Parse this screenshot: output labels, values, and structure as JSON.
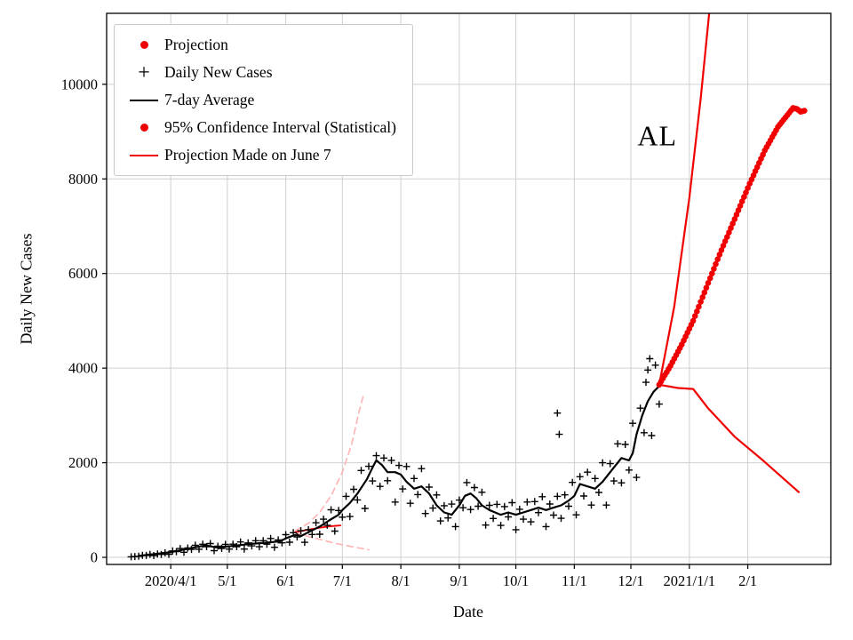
{
  "chart_data": {
    "type": "line",
    "title": "",
    "xlabel": "Date",
    "ylabel": "Daily New Cases",
    "annotation": {
      "text": "AL",
      "day": 349,
      "value": 8900
    },
    "x_unit": "days since 2020-01-01 (2020-2021 COVID-19 timeline)",
    "xlim_days": [
      57,
      441
    ],
    "ylim": [
      -150,
      11500
    ],
    "x_ticks": [
      {
        "day": 91,
        "label": "2020/4/1"
      },
      {
        "day": 121,
        "label": "5/1"
      },
      {
        "day": 152,
        "label": "6/1"
      },
      {
        "day": 182,
        "label": "7/1"
      },
      {
        "day": 213,
        "label": "8/1"
      },
      {
        "day": 244,
        "label": "9/1"
      },
      {
        "day": 274,
        "label": "10/1"
      },
      {
        "day": 305,
        "label": "11/1"
      },
      {
        "day": 335,
        "label": "12/1"
      },
      {
        "day": 366,
        "label": "2021/1/1"
      },
      {
        "day": 397,
        "label": "2/1"
      }
    ],
    "y_ticks": [
      0,
      2000,
      4000,
      6000,
      8000,
      10000
    ],
    "grid": true,
    "legend_position": "upper left",
    "colors": {
      "red": "#f00000",
      "pink": "#ffb3b3",
      "black": "#000000"
    },
    "legend": [
      {
        "label": "Projection",
        "marker": "dot",
        "color": "#f00000"
      },
      {
        "label": "Daily New Cases",
        "marker": "plus",
        "color": "#000000"
      },
      {
        "label": "7-day Average",
        "marker": "line",
        "color": "#000000"
      },
      {
        "label": "95% Confidence Interval (Statistical)",
        "marker": "dot",
        "color": "#f00000"
      },
      {
        "label": "Projection Made on June 7",
        "marker": "line",
        "color": "#f00000"
      }
    ],
    "series": [
      {
        "name": "june7_ci_upper",
        "style": "dashed",
        "color": "#ffb3b3",
        "width": 1.6,
        "points": [
          [
            157,
            560
          ],
          [
            164,
            720
          ],
          [
            170,
            950
          ],
          [
            176,
            1300
          ],
          [
            182,
            1800
          ],
          [
            187,
            2400
          ],
          [
            191,
            3100
          ],
          [
            193,
            3400
          ]
        ]
      },
      {
        "name": "june7_ci_lower",
        "style": "dashed",
        "color": "#ffb3b3",
        "width": 1.6,
        "points": [
          [
            157,
            520
          ],
          [
            164,
            440
          ],
          [
            171,
            370
          ],
          [
            178,
            300
          ],
          [
            185,
            240
          ],
          [
            192,
            190
          ],
          [
            196,
            160
          ]
        ]
      },
      {
        "name": "june7_projection",
        "style": "line",
        "color": "#f00000",
        "width": 1.8,
        "points": [
          [
            157,
            530
          ],
          [
            163,
            580
          ],
          [
            169,
            620
          ],
          [
            175,
            655
          ],
          [
            181,
            675
          ]
        ]
      },
      {
        "name": "daily_new_cases",
        "style": "scatter-plus",
        "color": "#000000",
        "width": 1.4,
        "points": [
          [
            70,
            12
          ],
          [
            72,
            18
          ],
          [
            74,
            23
          ],
          [
            76,
            43
          ],
          [
            78,
            40
          ],
          [
            80,
            64
          ],
          [
            82,
            38
          ],
          [
            84,
            72
          ],
          [
            86,
            62
          ],
          [
            88,
            96
          ],
          [
            90,
            65
          ],
          [
            92,
            136
          ],
          [
            94,
            120
          ],
          [
            96,
            186
          ],
          [
            98,
            107
          ],
          [
            100,
            198
          ],
          [
            102,
            167
          ],
          [
            104,
            256
          ],
          [
            106,
            172
          ],
          [
            108,
            276
          ],
          [
            110,
            225
          ],
          [
            112,
            292
          ],
          [
            114,
            142
          ],
          [
            116,
            235
          ],
          [
            118,
            189
          ],
          [
            120,
            274
          ],
          [
            122,
            175
          ],
          [
            124,
            279
          ],
          [
            126,
            226
          ],
          [
            128,
            325
          ],
          [
            130,
            175
          ],
          [
            132,
            305
          ],
          [
            134,
            243
          ],
          [
            136,
            352
          ],
          [
            138,
            224
          ],
          [
            140,
            352
          ],
          [
            142,
            279
          ],
          [
            144,
            398
          ],
          [
            146,
            213
          ],
          [
            148,
            369
          ],
          [
            150,
            306
          ],
          [
            152,
            480
          ],
          [
            154,
            320
          ],
          [
            156,
            521
          ],
          [
            158,
            432
          ],
          [
            160,
            562
          ],
          [
            162,
            318
          ],
          [
            164,
            583
          ],
          [
            166,
            484
          ],
          [
            168,
            732
          ],
          [
            170,
            488
          ],
          [
            172,
            807
          ],
          [
            174,
            679
          ],
          [
            176,
            1005
          ],
          [
            178,
            554
          ],
          [
            180,
            990
          ],
          [
            182,
            850
          ],
          [
            184,
            1290
          ],
          [
            186,
            862
          ],
          [
            188,
            1437
          ],
          [
            190,
            1215
          ],
          [
            192,
            1837
          ],
          [
            194,
            1033
          ],
          [
            196,
            1925
          ],
          [
            198,
            1615
          ],
          [
            200,
            2150
          ],
          [
            202,
            1500
          ],
          [
            204,
            2100
          ],
          [
            206,
            1620
          ],
          [
            208,
            2050
          ],
          [
            210,
            1170
          ],
          [
            212,
            1943
          ],
          [
            214,
            1445
          ],
          [
            216,
            1920
          ],
          [
            218,
            1143
          ],
          [
            220,
            1667
          ],
          [
            222,
            1327
          ],
          [
            224,
            1875
          ],
          [
            226,
            926
          ],
          [
            228,
            1485
          ],
          [
            230,
            1041
          ],
          [
            232,
            1320
          ],
          [
            234,
            769
          ],
          [
            236,
            1092
          ],
          [
            238,
            832
          ],
          [
            240,
            1125
          ],
          [
            242,
            650
          ],
          [
            244,
            1210
          ],
          [
            246,
            1048
          ],
          [
            248,
            1580
          ],
          [
            250,
            1012
          ],
          [
            252,
            1476
          ],
          [
            254,
            1080
          ],
          [
            256,
            1375
          ],
          [
            258,
            682
          ],
          [
            260,
            1100
          ],
          [
            262,
            822
          ],
          [
            264,
            1120
          ],
          [
            266,
            675
          ],
          [
            268,
            1073
          ],
          [
            270,
            855
          ],
          [
            272,
            1156
          ],
          [
            274,
            585
          ],
          [
            276,
            1017
          ],
          [
            278,
            807
          ],
          [
            280,
            1170
          ],
          [
            282,
            750
          ],
          [
            284,
            1179
          ],
          [
            286,
            945
          ],
          [
            288,
            1281
          ],
          [
            290,
            650
          ],
          [
            292,
            1127
          ],
          [
            294,
            892
          ],
          [
            296,
            1290
          ],
          [
            296,
            3050
          ],
          [
            297,
            2600
          ],
          [
            298,
            825
          ],
          [
            300,
            1322
          ],
          [
            302,
            1080
          ],
          [
            304,
            1584
          ],
          [
            306,
            899
          ],
          [
            308,
            1705
          ],
          [
            310,
            1296
          ],
          [
            312,
            1800
          ],
          [
            314,
            1106
          ],
          [
            316,
            1667
          ],
          [
            318,
            1372
          ],
          [
            320,
            2000
          ],
          [
            322,
            1105
          ],
          [
            324,
            1980
          ],
          [
            326,
            1615
          ],
          [
            328,
            2400
          ],
          [
            330,
            1575
          ],
          [
            332,
            2386
          ],
          [
            334,
            1845
          ],
          [
            336,
            2833
          ],
          [
            338,
            1690
          ],
          [
            340,
            3153
          ],
          [
            342,
            2635
          ],
          [
            343,
            3700
          ],
          [
            344,
            3960
          ],
          [
            345,
            4200
          ],
          [
            346,
            2575
          ],
          [
            348,
            4063
          ],
          [
            350,
            3240
          ]
        ]
      },
      {
        "name": "seven_day_average",
        "style": "line",
        "color": "#000000",
        "width": 2.2,
        "points": [
          [
            74,
            30
          ],
          [
            91,
            110
          ],
          [
            100,
            180
          ],
          [
            106,
            230
          ],
          [
            110,
            250
          ],
          [
            115,
            210
          ],
          [
            121,
            230
          ],
          [
            128,
            260
          ],
          [
            135,
            290
          ],
          [
            142,
            310
          ],
          [
            149,
            340
          ],
          [
            152,
            400
          ],
          [
            156,
            460
          ],
          [
            158,
            480
          ],
          [
            160,
            450
          ],
          [
            165,
            550
          ],
          [
            170,
            650
          ],
          [
            175,
            780
          ],
          [
            180,
            900
          ],
          [
            182,
            1000
          ],
          [
            186,
            1150
          ],
          [
            190,
            1350
          ],
          [
            195,
            1650
          ],
          [
            198,
            1900
          ],
          [
            200,
            2050
          ],
          [
            203,
            1950
          ],
          [
            206,
            1800
          ],
          [
            210,
            1800
          ],
          [
            213,
            1750
          ],
          [
            216,
            1600
          ],
          [
            220,
            1450
          ],
          [
            224,
            1500
          ],
          [
            228,
            1350
          ],
          [
            232,
            1100
          ],
          [
            236,
            950
          ],
          [
            240,
            900
          ],
          [
            244,
            1100
          ],
          [
            247,
            1300
          ],
          [
            250,
            1350
          ],
          [
            253,
            1250
          ],
          [
            256,
            1100
          ],
          [
            260,
            1000
          ],
          [
            263,
            950
          ],
          [
            266,
            900
          ],
          [
            270,
            950
          ],
          [
            274,
            900
          ],
          [
            278,
            950
          ],
          [
            282,
            1000
          ],
          [
            286,
            1050
          ],
          [
            290,
            1000
          ],
          [
            294,
            1050
          ],
          [
            298,
            1100
          ],
          [
            302,
            1200
          ],
          [
            305,
            1300
          ],
          [
            308,
            1550
          ],
          [
            312,
            1500
          ],
          [
            316,
            1450
          ],
          [
            320,
            1600
          ],
          [
            324,
            1800
          ],
          [
            328,
            2000
          ],
          [
            330,
            2100
          ],
          [
            334,
            2050
          ],
          [
            336,
            2200
          ],
          [
            338,
            2600
          ],
          [
            341,
            3000
          ],
          [
            344,
            3300
          ],
          [
            347,
            3500
          ],
          [
            350,
            3620
          ]
        ]
      },
      {
        "name": "ci_upper",
        "style": "line",
        "color": "#f00000",
        "width": 2.2,
        "points": [
          [
            350,
            3650
          ],
          [
            358,
            5300
          ],
          [
            366,
            7600
          ],
          [
            372,
            9700
          ],
          [
            377,
            11700
          ]
        ]
      },
      {
        "name": "ci_lower",
        "style": "line",
        "color": "#f00000",
        "width": 2.2,
        "points": [
          [
            350,
            3650
          ],
          [
            360,
            3580
          ],
          [
            368,
            3560
          ],
          [
            376,
            3150
          ],
          [
            390,
            2550
          ],
          [
            405,
            2050
          ],
          [
            424,
            1380
          ]
        ]
      },
      {
        "name": "projection",
        "style": "dots",
        "color": "#f00000",
        "dot_radius": 3.3,
        "points": [
          [
            350,
            3650
          ],
          [
            356,
            4050
          ],
          [
            362,
            4500
          ],
          [
            368,
            5000
          ],
          [
            375,
            5700
          ],
          [
            382,
            6400
          ],
          [
            390,
            7150
          ],
          [
            398,
            7900
          ],
          [
            406,
            8600
          ],
          [
            413,
            9100
          ],
          [
            418,
            9350
          ],
          [
            421,
            9500
          ],
          [
            423,
            9480
          ],
          [
            425,
            9420
          ],
          [
            427,
            9440
          ]
        ]
      }
    ]
  }
}
